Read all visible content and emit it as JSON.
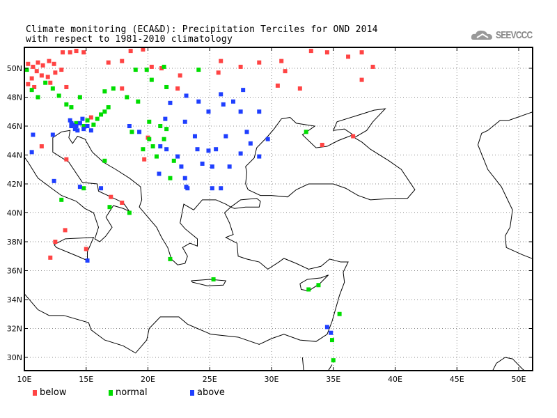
{
  "header": {
    "title_line1": "Climate monitoring (ECA&D): Precipitation Terciles for OND 2014",
    "title_line2": "with respect to 1981-2010 climatology",
    "logo_text": "SEEVCCC"
  },
  "legend": [
    {
      "key": "below",
      "label": "below",
      "color": "#ff4444"
    },
    {
      "key": "normal",
      "label": "normal",
      "color": "#00dd00"
    },
    {
      "key": "above",
      "label": "above",
      "color": "#1f3fff"
    }
  ],
  "axes": {
    "lon_labels": [
      "10E",
      "15E",
      "20E",
      "25E",
      "30E",
      "35E",
      "40E",
      "45E",
      "50E"
    ],
    "lon_values": [
      10,
      15,
      20,
      25,
      30,
      35,
      40,
      45,
      50
    ],
    "lat_labels": [
      "30N",
      "32N",
      "34N",
      "36N",
      "38N",
      "40N",
      "42N",
      "44N",
      "46N",
      "48N",
      "50N"
    ],
    "lat_values": [
      30,
      32,
      34,
      36,
      38,
      40,
      42,
      44,
      46,
      48,
      50
    ],
    "lon_range": [
      10,
      51.1
    ],
    "lat_range": [
      29.1,
      51.45
    ]
  },
  "stations": {
    "below": [
      [
        10.3,
        50.3
      ],
      [
        10.7,
        50.1
      ],
      [
        11.1,
        50.4
      ],
      [
        11.5,
        50.2
      ],
      [
        12.0,
        50.5
      ],
      [
        12.4,
        50.3
      ],
      [
        11.0,
        49.8
      ],
      [
        11.4,
        49.5
      ],
      [
        10.6,
        49.3
      ],
      [
        11.9,
        49.4
      ],
      [
        12.5,
        49.7
      ],
      [
        13.0,
        49.9
      ],
      [
        10.3,
        48.9
      ],
      [
        10.8,
        48.7
      ],
      [
        12.1,
        49.0
      ],
      [
        13.4,
        48.7
      ],
      [
        13.7,
        51.1
      ],
      [
        14.2,
        51.2
      ],
      [
        14.8,
        51.1
      ],
      [
        13.1,
        51.1
      ],
      [
        16.8,
        50.4
      ],
      [
        17.9,
        50.5
      ],
      [
        18.6,
        51.2
      ],
      [
        19.6,
        51.3
      ],
      [
        20.3,
        50.1
      ],
      [
        21.1,
        50.0
      ],
      [
        22.6,
        49.5
      ],
      [
        22.4,
        48.6
      ],
      [
        17.9,
        48.6
      ],
      [
        25.7,
        49.7
      ],
      [
        25.9,
        50.5
      ],
      [
        27.5,
        50.1
      ],
      [
        29.0,
        50.4
      ],
      [
        30.8,
        50.5
      ],
      [
        31.1,
        49.8
      ],
      [
        30.5,
        48.8
      ],
      [
        32.3,
        48.6
      ],
      [
        33.2,
        51.2
      ],
      [
        34.5,
        51.1
      ],
      [
        36.2,
        50.8
      ],
      [
        37.3,
        51.1
      ],
      [
        38.2,
        50.1
      ],
      [
        37.3,
        49.2
      ],
      [
        34.1,
        44.7
      ],
      [
        36.6,
        45.3
      ],
      [
        20.0,
        45.2
      ],
      [
        19.7,
        43.7
      ],
      [
        17.0,
        41.1
      ],
      [
        17.9,
        40.7
      ],
      [
        13.3,
        38.8
      ],
      [
        12.5,
        38.0
      ],
      [
        15.0,
        37.5
      ],
      [
        12.1,
        36.9
      ],
      [
        11.4,
        44.6
      ],
      [
        13.4,
        43.7
      ],
      [
        15.4,
        46.6
      ]
    ],
    "normal": [
      [
        10.2,
        49.9
      ],
      [
        10.6,
        48.5
      ],
      [
        11.1,
        48.0
      ],
      [
        11.7,
        49.0
      ],
      [
        12.3,
        48.6
      ],
      [
        12.8,
        48.1
      ],
      [
        13.4,
        47.5
      ],
      [
        13.8,
        47.3
      ],
      [
        16.2,
        46.8
      ],
      [
        16.5,
        47.0
      ],
      [
        16.8,
        47.3
      ],
      [
        19.0,
        49.9
      ],
      [
        19.9,
        49.9
      ],
      [
        21.3,
        50.1
      ],
      [
        24.1,
        49.9
      ],
      [
        20.3,
        49.2
      ],
      [
        16.5,
        48.4
      ],
      [
        17.2,
        48.6
      ],
      [
        18.3,
        48.0
      ],
      [
        19.2,
        47.7
      ],
      [
        20.1,
        46.3
      ],
      [
        21.0,
        46.0
      ],
      [
        21.5,
        45.8
      ],
      [
        20.1,
        45.1
      ],
      [
        20.4,
        44.6
      ],
      [
        21.3,
        45.1
      ],
      [
        20.7,
        43.9
      ],
      [
        22.1,
        43.6
      ],
      [
        21.8,
        42.4
      ],
      [
        19.6,
        44.4
      ],
      [
        18.7,
        45.6
      ],
      [
        16.5,
        43.6
      ],
      [
        14.8,
        41.7
      ],
      [
        13.0,
        40.9
      ],
      [
        16.9,
        40.4
      ],
      [
        18.5,
        40.0
      ],
      [
        32.8,
        45.6
      ],
      [
        33.0,
        34.7
      ],
      [
        33.8,
        35.0
      ],
      [
        34.9,
        31.2
      ],
      [
        35.0,
        29.8
      ],
      [
        35.5,
        33.0
      ],
      [
        25.3,
        35.4
      ],
      [
        21.8,
        36.8
      ],
      [
        21.5,
        48.7
      ],
      [
        14.5,
        48.0
      ],
      [
        15.1,
        46.4
      ],
      [
        15.6,
        46.1
      ],
      [
        15.9,
        46.5
      ],
      [
        14.8,
        46.0
      ],
      [
        14.2,
        46.2
      ]
    ],
    "above": [
      [
        10.7,
        45.4
      ],
      [
        10.6,
        44.2
      ],
      [
        12.3,
        45.4
      ],
      [
        12.4,
        42.2
      ],
      [
        14.5,
        41.8
      ],
      [
        16.2,
        41.7
      ],
      [
        15.1,
        36.7
      ],
      [
        18.5,
        46.0
      ],
      [
        19.3,
        45.6
      ],
      [
        21.0,
        44.6
      ],
      [
        21.5,
        44.4
      ],
      [
        22.4,
        43.9
      ],
      [
        22.7,
        43.2
      ],
      [
        23.0,
        42.4
      ],
      [
        23.2,
        41.7
      ],
      [
        23.8,
        45.3
      ],
      [
        24.0,
        44.4
      ],
      [
        23.0,
        46.3
      ],
      [
        24.1,
        47.7
      ],
      [
        24.9,
        47.0
      ],
      [
        25.9,
        48.2
      ],
      [
        26.1,
        47.5
      ],
      [
        26.9,
        47.7
      ],
      [
        27.7,
        48.5
      ],
      [
        27.5,
        47.0
      ],
      [
        29.0,
        47.0
      ],
      [
        28.0,
        45.6
      ],
      [
        26.3,
        45.3
      ],
      [
        25.5,
        44.4
      ],
      [
        24.9,
        44.3
      ],
      [
        24.4,
        43.4
      ],
      [
        25.2,
        43.2
      ],
      [
        26.6,
        43.2
      ],
      [
        27.5,
        44.1
      ],
      [
        28.3,
        44.8
      ],
      [
        29.7,
        45.1
      ],
      [
        29.0,
        43.9
      ],
      [
        21.8,
        47.6
      ],
      [
        21.4,
        46.5
      ],
      [
        23.1,
        48.1
      ],
      [
        20.9,
        42.7
      ],
      [
        23.1,
        41.8
      ],
      [
        25.2,
        41.7
      ],
      [
        25.9,
        41.7
      ],
      [
        34.5,
        32.1
      ],
      [
        34.8,
        31.7
      ],
      [
        13.7,
        46.4
      ],
      [
        13.9,
        46.1
      ],
      [
        14.2,
        46.0
      ],
      [
        14.5,
        46.2
      ],
      [
        14.8,
        45.8
      ],
      [
        15.1,
        46.0
      ],
      [
        15.4,
        45.7
      ],
      [
        14.1,
        45.8
      ],
      [
        13.8,
        46.0
      ],
      [
        14.7,
        46.5
      ],
      [
        14.3,
        45.7
      ],
      [
        13.8,
        46.2
      ]
    ]
  }
}
